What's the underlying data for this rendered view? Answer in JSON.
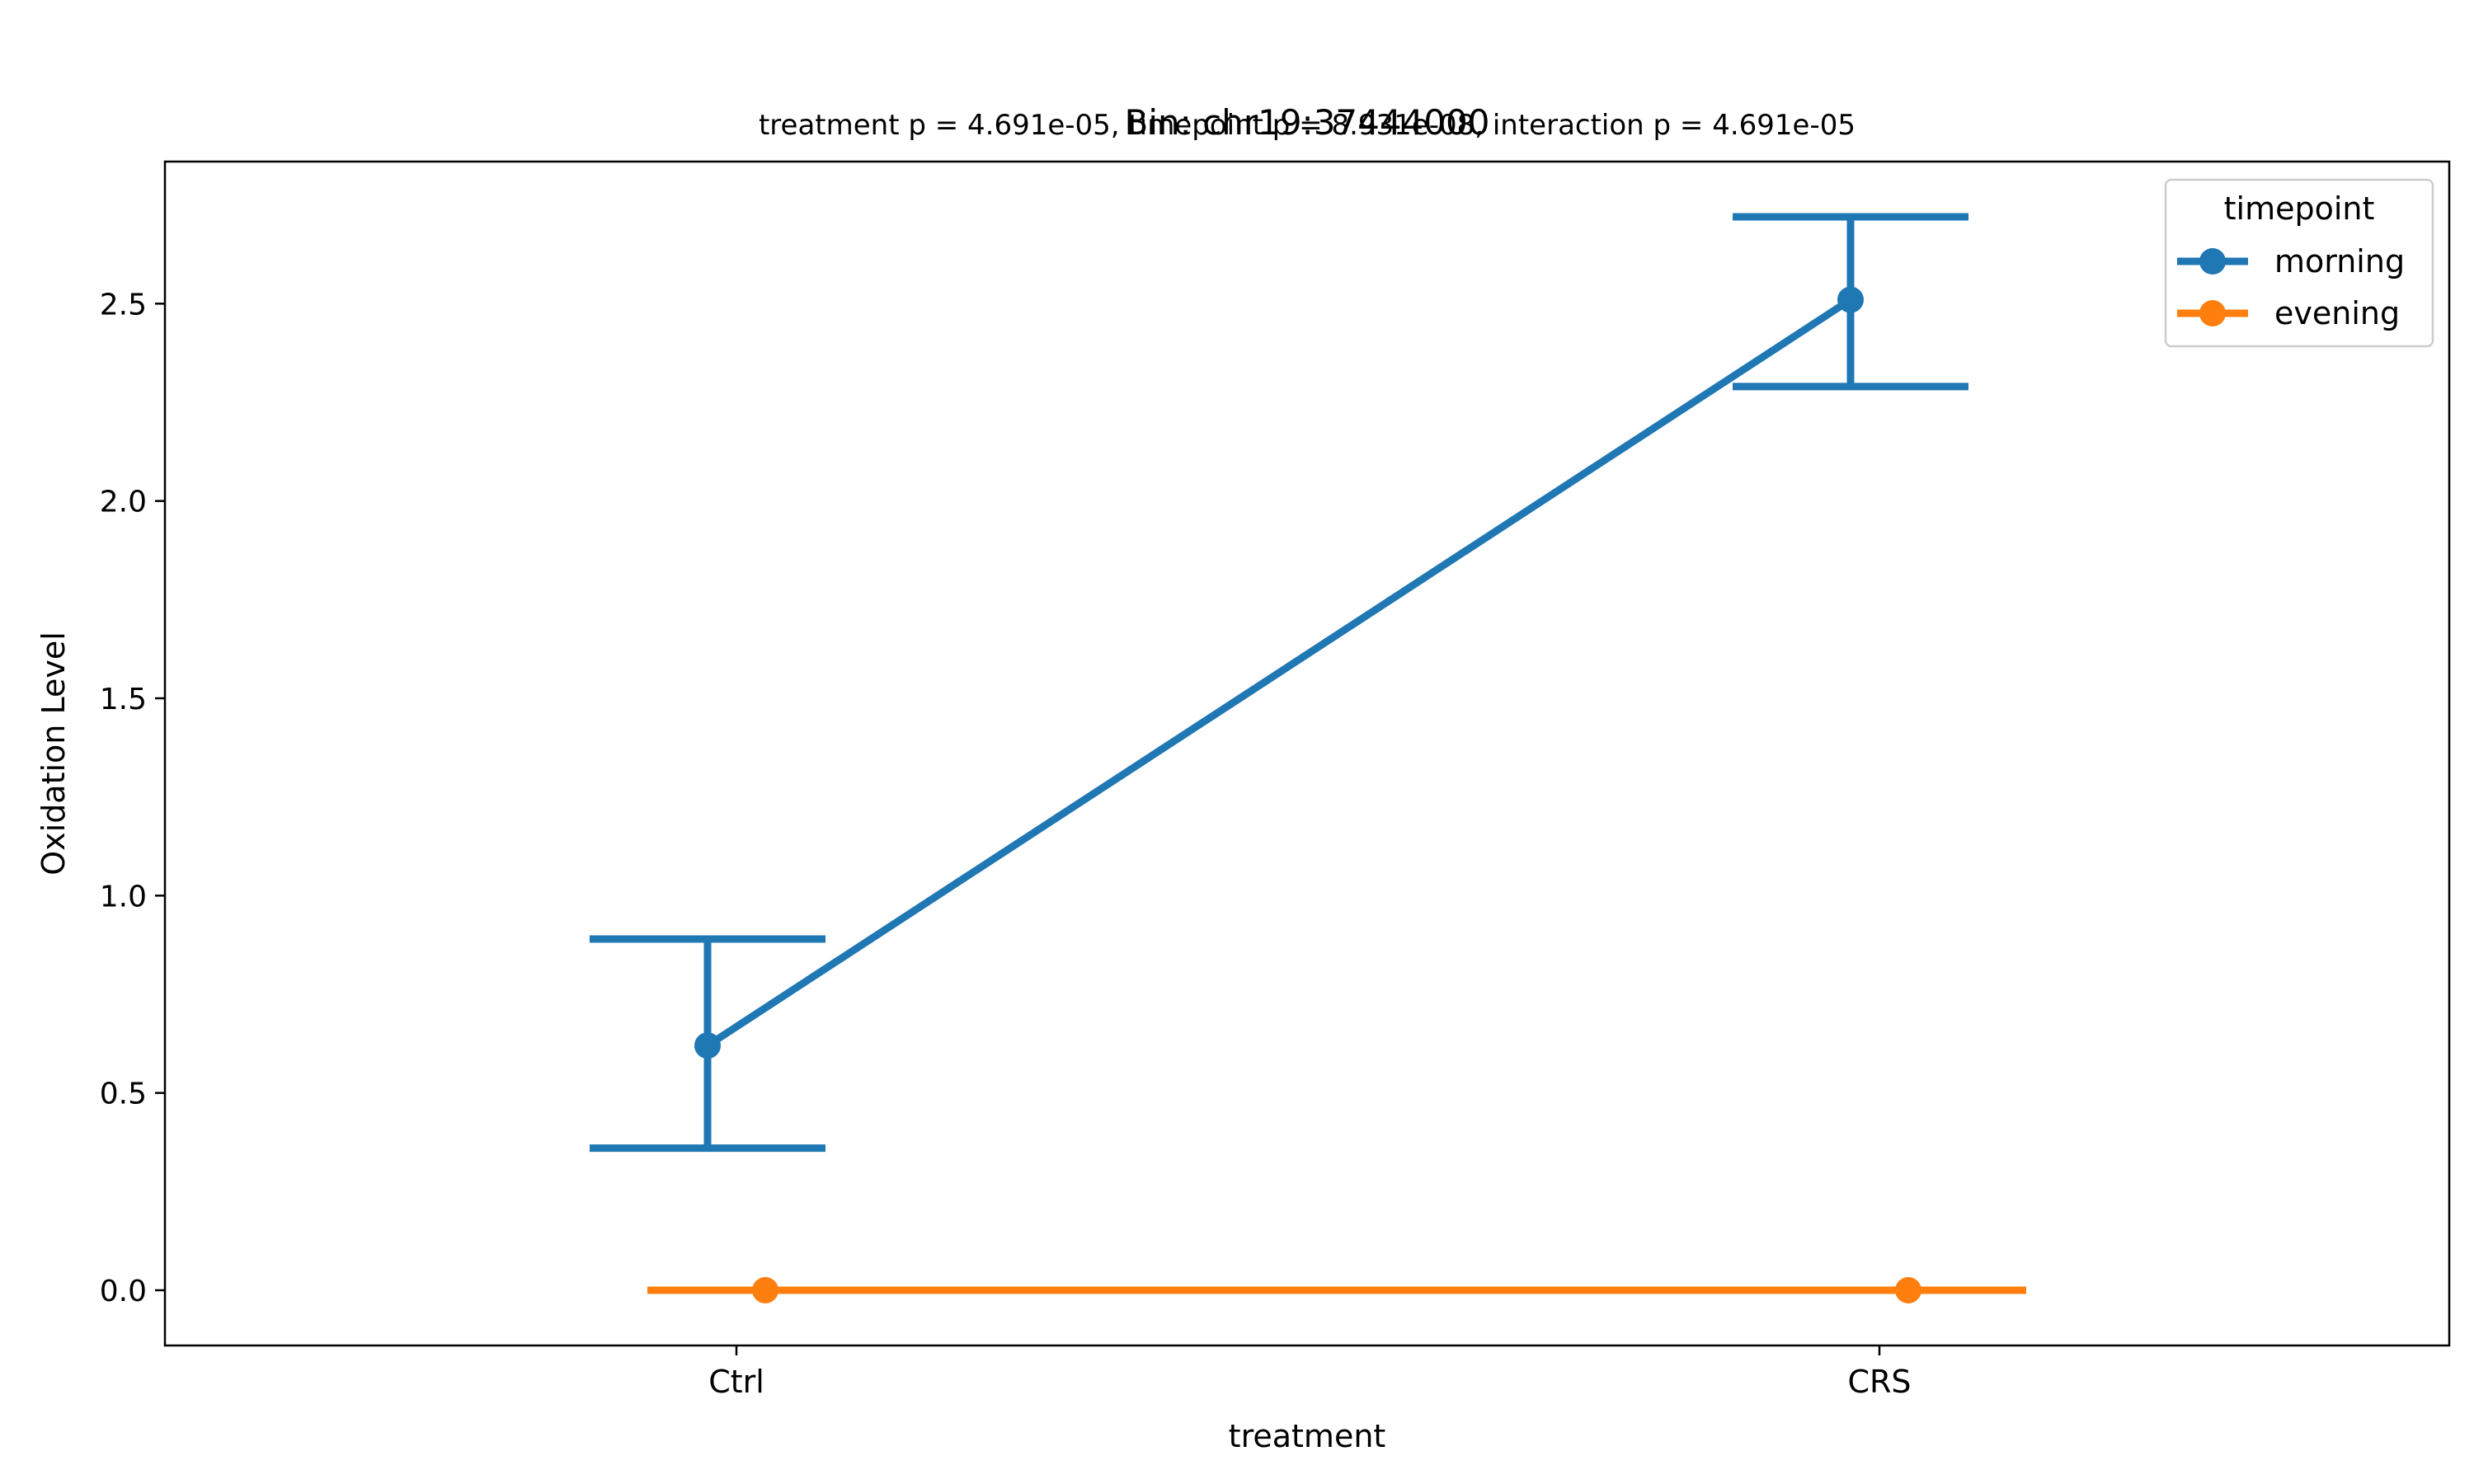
{
  "title": "Bin: chr19:37444000",
  "subtitle": "treatment p = 4.691e-05, timepoint p = 8.931e-08, interaction p = 4.691e-05",
  "chart_data": {
    "type": "line",
    "title": "Bin: chr19:37444000",
    "subtitle": "treatment p = 4.691e-05, timepoint p = 8.931e-08, interaction p = 4.691e-05",
    "xlabel": "treatment",
    "ylabel": "Oxidation Level",
    "categories": [
      "Ctrl",
      "CRS"
    ],
    "ylim": [
      -0.14,
      2.86
    ],
    "yticks": [
      0.0,
      0.5,
      1.0,
      1.5,
      2.0,
      2.5
    ],
    "ytick_labels": [
      "0.0",
      "0.5",
      "1.0",
      "1.5",
      "2.0",
      "2.5"
    ],
    "grid": false,
    "legend": {
      "title": "timepoint",
      "placement": "top-right"
    },
    "series": [
      {
        "name": "morning",
        "color": "#1f77b4",
        "values": [
          0.62,
          2.51
        ],
        "error_low": [
          0.36,
          2.29
        ],
        "error_high": [
          0.89,
          2.72
        ]
      },
      {
        "name": "evening",
        "color": "#ff7f0e",
        "values": [
          0.0,
          0.0
        ],
        "error_low": [
          0.0,
          0.0
        ],
        "error_high": [
          0.0,
          0.0
        ]
      }
    ]
  }
}
